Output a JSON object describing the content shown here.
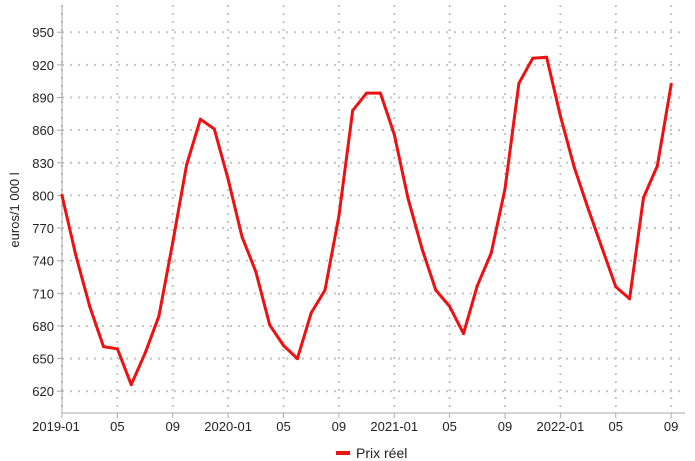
{
  "chart_data": {
    "type": "line",
    "title": "",
    "xlabel": "",
    "ylabel": "euros/1 000 l",
    "ylim": [
      600,
      975
    ],
    "xlim": [
      "2019-01",
      "2022-10"
    ],
    "yticks": [
      620,
      650,
      680,
      710,
      740,
      770,
      800,
      830,
      860,
      890,
      920,
      950
    ],
    "ytick_labels": [
      "620",
      "650",
      "680",
      "710",
      "740",
      "770",
      "800",
      "830",
      "860",
      "890",
      "920",
      "950"
    ],
    "xticks": [
      "2019-01",
      "2019-05",
      "2019-09",
      "2020-01",
      "2020-05",
      "2020-09",
      "2021-01",
      "2021-05",
      "2021-09",
      "2022-01",
      "2022-05",
      "2022-09"
    ],
    "xtick_labels": [
      "2019-01",
      "05",
      "09",
      "2020-01",
      "05",
      "09",
      "2021-01",
      "05",
      "09",
      "2022-01",
      "05",
      "09"
    ],
    "grid": true,
    "legend_position": "bottom-center",
    "series": [
      {
        "name": "Prix réel",
        "color": "#ee1111",
        "x": [
          "2019-01",
          "2019-02",
          "2019-03",
          "2019-04",
          "2019-05",
          "2019-06",
          "2019-07",
          "2019-08",
          "2019-09",
          "2019-10",
          "2019-11",
          "2019-12",
          "2020-01",
          "2020-02",
          "2020-03",
          "2020-04",
          "2020-05",
          "2020-06",
          "2020-07",
          "2020-08",
          "2020-09",
          "2020-10",
          "2020-11",
          "2020-12",
          "2021-01",
          "2021-02",
          "2021-03",
          "2021-04",
          "2021-05",
          "2021-06",
          "2021-07",
          "2021-08",
          "2021-09",
          "2021-10",
          "2021-11",
          "2021-12",
          "2022-01",
          "2022-02",
          "2022-03",
          "2022-04",
          "2022-05",
          "2022-06",
          "2022-07",
          "2022-08",
          "2022-09"
        ],
        "values": [
          800,
          745,
          698,
          661,
          659,
          626,
          655,
          689,
          757,
          828,
          870,
          861,
          815,
          762,
          730,
          681,
          662,
          650,
          692,
          713,
          781,
          878,
          894,
          894,
          856,
          797,
          751,
          713,
          698,
          673,
          717,
          747,
          806,
          903,
          926,
          927,
          873,
          826,
          788,
          752,
          716,
          705,
          798,
          827,
          902
        ]
      }
    ]
  }
}
